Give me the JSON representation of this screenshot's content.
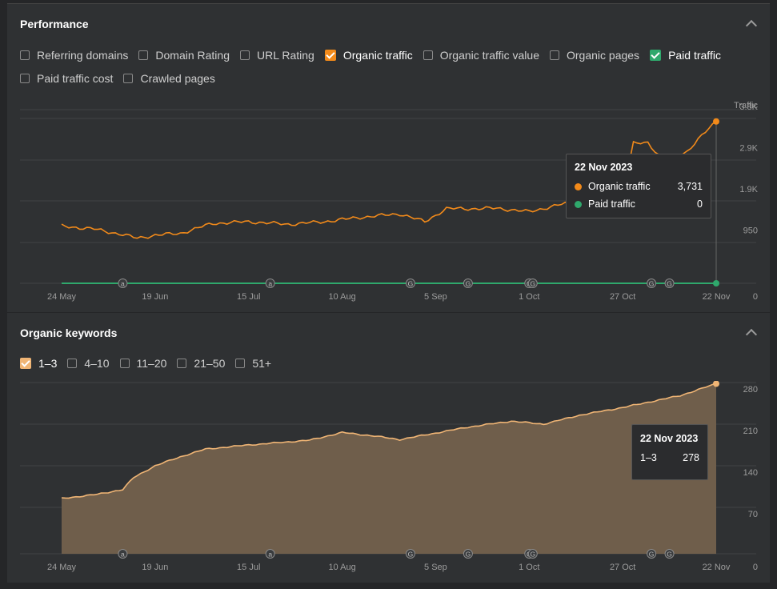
{
  "performance": {
    "title": "Performance",
    "checkboxes": [
      {
        "label": "Referring domains",
        "checked": false
      },
      {
        "label": "Domain Rating",
        "checked": false
      },
      {
        "label": "URL Rating",
        "checked": false
      },
      {
        "label": "Organic traffic",
        "checked": true,
        "color": "#f28a1a"
      },
      {
        "label": "Organic traffic value",
        "checked": false
      },
      {
        "label": "Organic pages",
        "checked": false
      },
      {
        "label": "Paid traffic",
        "checked": true,
        "color": "#2fa86c"
      },
      {
        "label": "Paid traffic cost",
        "checked": false
      },
      {
        "label": "Crawled pages",
        "checked": false
      }
    ],
    "tooltip": {
      "date": "22 Nov 2023",
      "rows": [
        {
          "label": "Organic traffic",
          "value": "3,731",
          "color": "#f28a1a"
        },
        {
          "label": "Paid traffic",
          "value": "0",
          "color": "#2fa86c"
        }
      ]
    }
  },
  "keywords": {
    "title": "Organic keywords",
    "checkboxes": [
      {
        "label": "1–3",
        "checked": true,
        "color": "#f0b575"
      },
      {
        "label": "4–10",
        "checked": false
      },
      {
        "label": "11–20",
        "checked": false
      },
      {
        "label": "21–50",
        "checked": false
      },
      {
        "label": "51+",
        "checked": false
      }
    ],
    "tooltip": {
      "date": "22 Nov 2023",
      "rows": [
        {
          "label": "1–3",
          "value": "278"
        }
      ]
    }
  },
  "chart_data": [
    {
      "type": "line",
      "y_axis_title": "Traffic",
      "x_ticks": [
        "24 May",
        "19 Jun",
        "15 Jul",
        "10 Aug",
        "5 Sep",
        "1 Oct",
        "27 Oct",
        "22 Nov"
      ],
      "y_ticks": [
        "0",
        "950",
        "1.9K",
        "2.9K",
        "3.8K"
      ],
      "ylim": [
        0,
        4000
      ],
      "grid": true,
      "markers": [
        {
          "x": "10 Jun",
          "label": "a"
        },
        {
          "x": "21 Jul",
          "label": "a"
        },
        {
          "x": "29 Aug",
          "label": "G"
        },
        {
          "x": "14 Sep",
          "label": "G"
        },
        {
          "x": "1 Oct",
          "label": "G"
        },
        {
          "x": "2 Oct",
          "label": "G"
        },
        {
          "x": "4 Nov",
          "label": "G"
        },
        {
          "x": "9 Nov",
          "label": "G"
        }
      ],
      "series": [
        {
          "name": "Organic traffic",
          "color": "#f28a1a",
          "points": [
            [
              "24 May",
              1320
            ],
            [
              "2 Jun",
              1250
            ],
            [
              "9 Jun",
              1140
            ],
            [
              "14 Jun",
              1040
            ],
            [
              "19 Jun",
              1110
            ],
            [
              "26 Jun",
              1150
            ],
            [
              "5 Jul",
              1380
            ],
            [
              "15 Jul",
              1420
            ],
            [
              "26 Jul",
              1360
            ],
            [
              "5 Aug",
              1420
            ],
            [
              "15 Aug",
              1520
            ],
            [
              "26 Aug",
              1600
            ],
            [
              "2 Sep",
              1420
            ],
            [
              "8 Sep",
              1720
            ],
            [
              "15 Sep",
              1720
            ],
            [
              "22 Sep",
              1730
            ],
            [
              "1 Oct",
              1650
            ],
            [
              "10 Oct",
              1820
            ],
            [
              "17 Oct",
              1900
            ],
            [
              "27 Oct",
              2050
            ],
            [
              "30 Oct",
              3220
            ],
            [
              "3 Nov",
              3250
            ],
            [
              "8 Nov",
              2750
            ],
            [
              "14 Nov",
              3050
            ],
            [
              "18 Nov",
              3400
            ],
            [
              "22 Nov",
              3731
            ]
          ]
        },
        {
          "name": "Paid traffic",
          "color": "#2fa86c",
          "points": [
            [
              "24 May",
              0
            ],
            [
              "22 Nov",
              0
            ]
          ]
        }
      ]
    },
    {
      "type": "area",
      "x_ticks": [
        "24 May",
        "19 Jun",
        "15 Jul",
        "10 Aug",
        "5 Sep",
        "1 Oct",
        "27 Oct",
        "22 Nov"
      ],
      "y_ticks": [
        "0",
        "70",
        "140",
        "210",
        "280"
      ],
      "ylim": [
        0,
        300
      ],
      "grid": true,
      "markers": [
        {
          "x": "10 Jun",
          "label": "a"
        },
        {
          "x": "21 Jul",
          "label": "a"
        },
        {
          "x": "29 Aug",
          "label": "G"
        },
        {
          "x": "14 Sep",
          "label": "G"
        },
        {
          "x": "1 Oct",
          "label": "G"
        },
        {
          "x": "2 Oct",
          "label": "G"
        },
        {
          "x": "4 Nov",
          "label": "G"
        },
        {
          "x": "9 Nov",
          "label": "G"
        }
      ],
      "series": [
        {
          "name": "1–3",
          "color": "#f0b575",
          "points": [
            [
              "24 May",
              85
            ],
            [
              "3 Jun",
              92
            ],
            [
              "10 Jun",
              100
            ],
            [
              "13 Jun",
              120
            ],
            [
              "19 Jun",
              140
            ],
            [
              "26 Jun",
              155
            ],
            [
              "3 Jul",
              168
            ],
            [
              "15 Jul",
              175
            ],
            [
              "1 Aug",
              183
            ],
            [
              "10 Aug",
              196
            ],
            [
              "19 Aug",
              190
            ],
            [
              "26 Aug",
              184
            ],
            [
              "5 Sep",
              195
            ],
            [
              "14 Sep",
              205
            ],
            [
              "26 Sep",
              215
            ],
            [
              "5 Oct",
              210
            ],
            [
              "15 Oct",
              225
            ],
            [
              "27 Oct",
              238
            ],
            [
              "4 Nov",
              248
            ],
            [
              "12 Nov",
              258
            ],
            [
              "19 Nov",
              272
            ],
            [
              "22 Nov",
              278
            ]
          ]
        }
      ]
    }
  ]
}
